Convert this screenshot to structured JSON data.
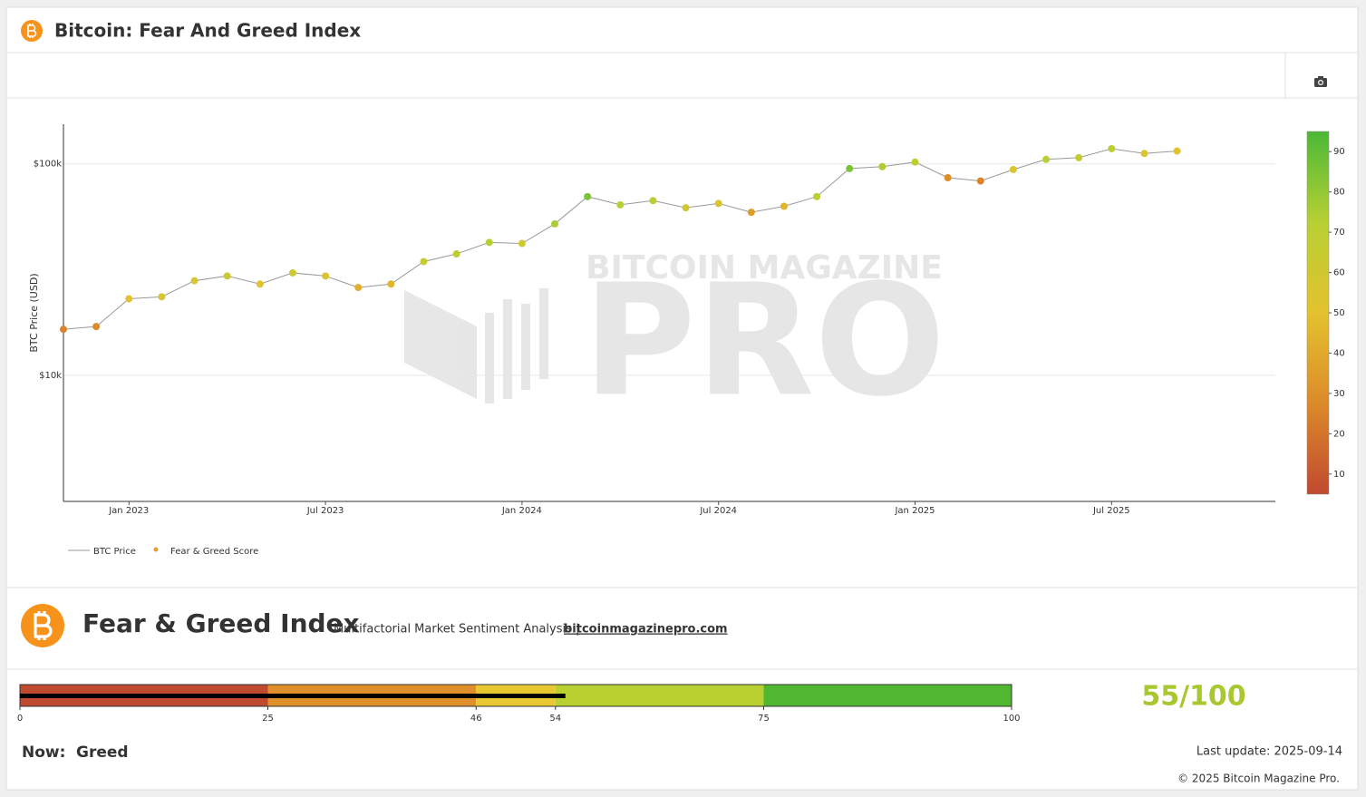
{
  "header": {
    "title": "Bitcoin: Fear And Greed Index"
  },
  "chart_data": {
    "type": "scatter",
    "y_label": "BTC Price (USD)",
    "x": [
      "2022-11",
      "2022-12",
      "2023-01",
      "2023-02",
      "2023-03",
      "2023-04",
      "2023-05",
      "2023-06",
      "2023-07",
      "2023-08",
      "2023-09",
      "2023-10",
      "2023-11",
      "2023-12",
      "2024-01",
      "2024-02",
      "2024-03",
      "2024-04",
      "2024-05",
      "2024-06",
      "2024-07",
      "2024-08",
      "2024-09",
      "2024-10",
      "2024-11",
      "2024-12",
      "2025-01",
      "2025-02",
      "2025-03",
      "2025-04",
      "2025-05",
      "2025-06",
      "2025-07",
      "2025-08",
      "2025-09"
    ],
    "xlim": [
      "2022-11",
      "2025-12"
    ],
    "xticks": [
      {
        "value": "2023-01",
        "label": "Jan 2023"
      },
      {
        "value": "2023-07",
        "label": "Jul 2023"
      },
      {
        "value": "2024-01",
        "label": "Jan 2024"
      },
      {
        "value": "2024-07",
        "label": "Jul 2024"
      },
      {
        "value": "2025-01",
        "label": "Jan 2025"
      },
      {
        "value": "2025-07",
        "label": "Jul 2025"
      }
    ],
    "ylim": [
      2530,
      154000
    ],
    "log_scale": true,
    "grid": true,
    "yticks": [
      {
        "value": 10000,
        "label": "$10k"
      },
      {
        "value": 100000,
        "label": "$100k"
      }
    ],
    "series": [
      {
        "name": "BTC Price",
        "color": "#999999",
        "values": [
          16500,
          17000,
          23000,
          23500,
          28000,
          29500,
          27000,
          30500,
          29500,
          26000,
          27000,
          34500,
          37500,
          42500,
          42000,
          52000,
          70000,
          64000,
          67000,
          62000,
          65000,
          59000,
          63000,
          70000,
          95000,
          97000,
          102000,
          86000,
          83000,
          94000,
          105000,
          107000,
          118000,
          112000,
          115000
        ]
      },
      {
        "name": "Fear & Greed Score",
        "color": "#e0a030",
        "values": [
          25,
          28,
          50,
          55,
          58,
          60,
          52,
          62,
          55,
          42,
          45,
          65,
          70,
          72,
          60,
          75,
          85,
          72,
          70,
          60,
          55,
          35,
          45,
          70,
          85,
          75,
          70,
          30,
          25,
          55,
          70,
          65,
          70,
          55,
          50
        ]
      }
    ],
    "colorbar": {
      "range": [
        5,
        95
      ],
      "ticks": [
        10,
        20,
        30,
        40,
        50,
        60,
        70,
        80,
        90
      ],
      "colors": [
        "#c04a30",
        "#dc8a2a",
        "#e3c22e",
        "#b8d034",
        "#4cb836"
      ]
    },
    "watermark": {
      "top": "BITCOIN MAGAZINE",
      "main": "PRO"
    }
  },
  "panel": {
    "title": "Fear & Greed Index",
    "subtitle": "Multifactorial Market Sentiment Analysis |",
    "link": "bitcoinmagazinepro.com",
    "gauge": {
      "ticks": [
        0,
        25,
        46,
        54,
        75,
        100
      ],
      "colors": [
        "#c04a30",
        "#e0902a",
        "#e8c830",
        "#b8d030",
        "#50b830"
      ],
      "value": 55,
      "pointer_color": "#000000",
      "score_label": "55/100"
    },
    "now_label": "Now:",
    "status": "Greed",
    "status_color": "#a8c830",
    "last_update": "Last update: 2025-09-14",
    "copyright": "© 2025 Bitcoin Magazine Pro."
  }
}
